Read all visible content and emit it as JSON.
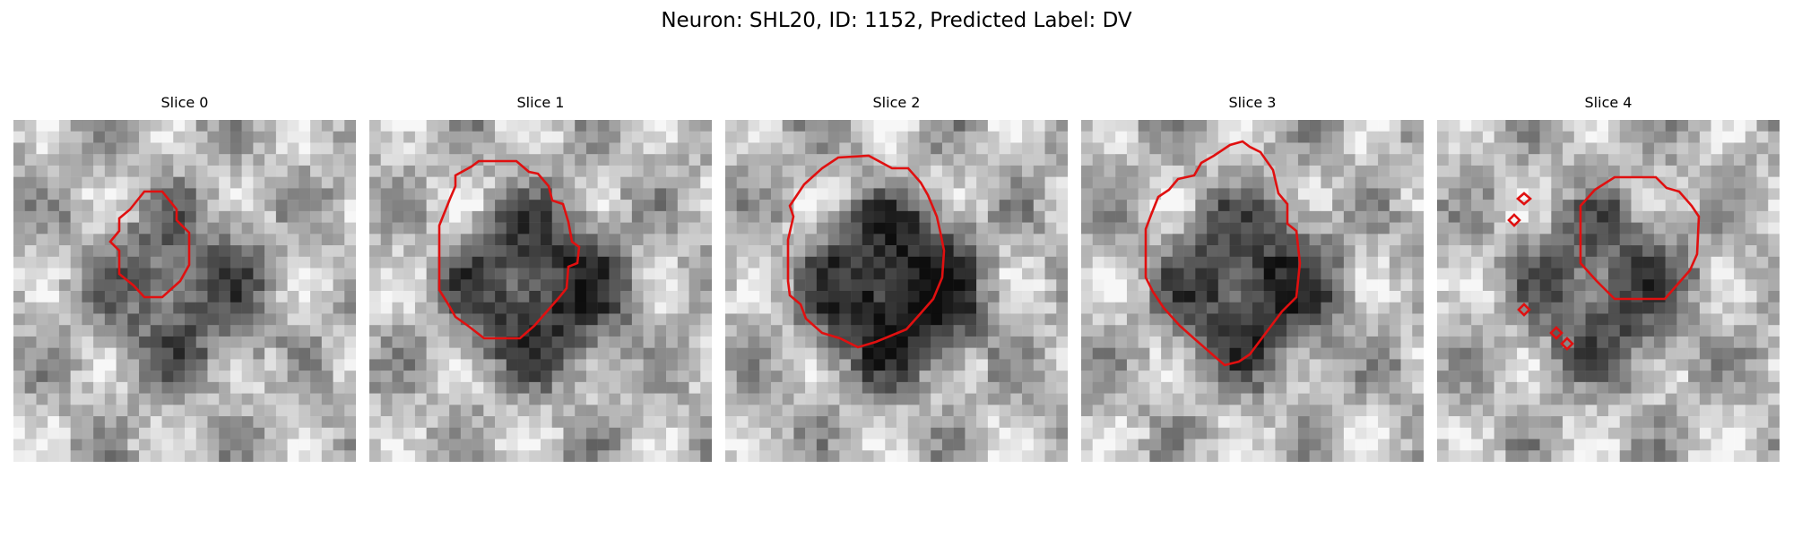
{
  "figure": {
    "title": "Neuron: SHL20, ID: 1152, Predicted Label: DV"
  },
  "panels": [
    {
      "title": "Slice 0"
    },
    {
      "title": "Slice 1"
    },
    {
      "title": "Slice 2"
    },
    {
      "title": "Slice 3"
    },
    {
      "title": "Slice 4"
    }
  ],
  "colors": {
    "contour": "#e01010",
    "background": "#ffffff"
  }
}
